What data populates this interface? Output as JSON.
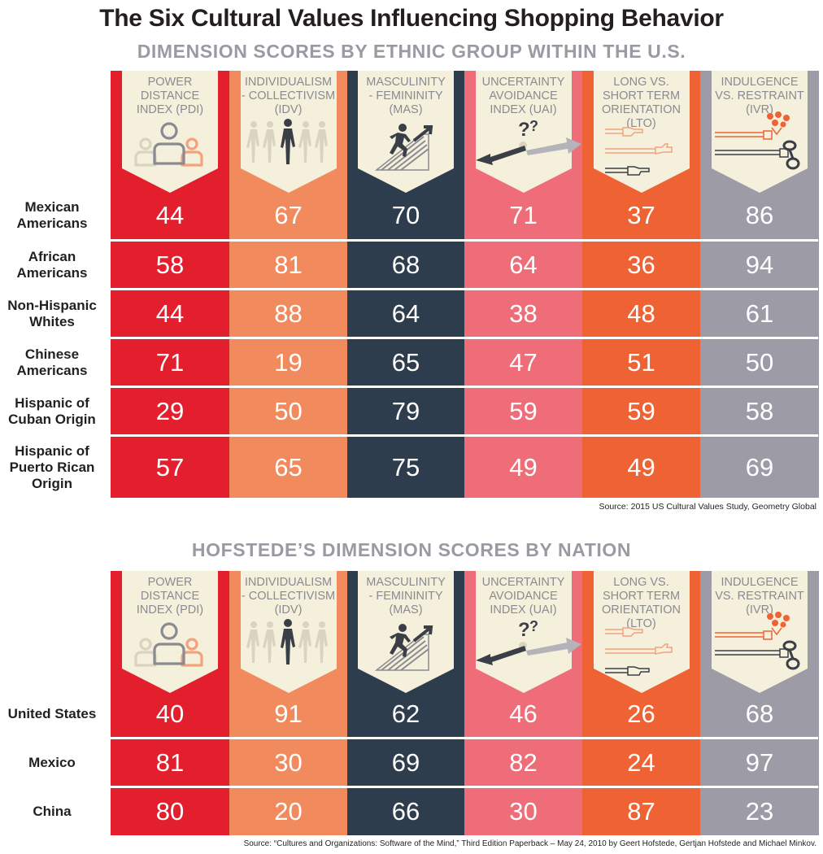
{
  "title": "The Six Cultural Values Influencing Shopping Behavior",
  "colors": {
    "pdi": "#e31e2d",
    "idv": "#f18b5e",
    "mas": "#2e3d4d",
    "uai": "#ef6d79",
    "lto": "#ef6233",
    "ivr": "#9d9ca6",
    "card": "#f5f0dc",
    "card_text": "#8a8a91"
  },
  "dimensions": [
    {
      "key": "pdi",
      "label": "POWER DISTANCE INDEX (PDI)",
      "lines": [
        "POWER",
        "DISTANCE",
        "INDEX (PDI)"
      ],
      "icon": "people-group-icon"
    },
    {
      "key": "idv",
      "label": "INDIVIDUALISM - COLLECTIVISM (IDV)",
      "lines": [
        "INDIVIDUALISM",
        "- COLLECTIVISM",
        "(IDV)"
      ],
      "icon": "walking-crowd-icon"
    },
    {
      "key": "mas",
      "label": "MASCULINITY - FEMININITY (MAS)",
      "lines": [
        "MASCULINITY",
        "- FEMININITY",
        "(MAS)"
      ],
      "icon": "runner-stairs-icon"
    },
    {
      "key": "uai",
      "label": "UNCERTAINTY AVOIDANCE INDEX (UAI)",
      "lines": [
        "UNCERTAINTY",
        "AVOIDANCE",
        "INDEX (UAI)"
      ],
      "icon": "question-arrows-icon"
    },
    {
      "key": "lto",
      "label": "LONG VS. SHORT TERM ORIENTATION (LTO)",
      "lines": [
        "LONG VS.",
        "SHORT TERM",
        "ORIENTATION",
        "(LTO)"
      ],
      "icon": "pointing-hands-icon"
    },
    {
      "key": "ivr",
      "label": "INDULGENCE VS. RESTRAINT (IVR)",
      "lines": [
        "INDULGENCE",
        "VS. RESTRAINT",
        "(IVR)"
      ],
      "icon": "flowers-handcuff-icon"
    }
  ],
  "chart_data": [
    {
      "type": "table",
      "title": "DIMENSION SCORES BY ETHNIC GROUP WITHIN THE U.S.",
      "columns": [
        "POWER DISTANCE INDEX (PDI)",
        "INDIVIDUALISM - COLLECTIVISM (IDV)",
        "MASCULINITY - FEMININITY (MAS)",
        "UNCERTAINTY AVOIDANCE INDEX (UAI)",
        "LONG VS. SHORT TERM ORIENTATION (LTO)",
        "INDULGENCE VS. RESTRAINT (IVR)"
      ],
      "rows": [
        {
          "label": "Mexican Americans",
          "lines": [
            "Mexican",
            "Americans"
          ],
          "values": [
            44,
            67,
            70,
            71,
            37,
            86
          ]
        },
        {
          "label": "African Americans",
          "lines": [
            "African",
            "Americans"
          ],
          "values": [
            58,
            81,
            68,
            64,
            36,
            94
          ]
        },
        {
          "label": "Non-Hispanic Whites",
          "lines": [
            "Non-Hispanic",
            "Whites"
          ],
          "values": [
            44,
            88,
            64,
            38,
            48,
            61
          ]
        },
        {
          "label": "Chinese Americans",
          "lines": [
            "Chinese",
            "Americans"
          ],
          "values": [
            71,
            19,
            65,
            47,
            51,
            50
          ]
        },
        {
          "label": "Hispanic of Cuban Origin",
          "lines": [
            "Hispanic of",
            "Cuban Origin"
          ],
          "values": [
            29,
            50,
            79,
            59,
            59,
            58
          ]
        },
        {
          "label": "Hispanic of Puerto Rican Origin",
          "lines": [
            "Hispanic of",
            "Puerto Rican",
            "Origin"
          ],
          "values": [
            57,
            65,
            75,
            49,
            49,
            69
          ]
        }
      ],
      "source": "Source: 2015 US Cultural Values Study, Geometry Global"
    },
    {
      "type": "table",
      "title": "HOFSTEDE’S DIMENSION SCORES BY NATION",
      "columns": [
        "POWER DISTANCE INDEX (PDI)",
        "INDIVIDUALISM - COLLECTIVISM (IDV)",
        "MASCULINITY - FEMININITY (MAS)",
        "UNCERTAINTY AVOIDANCE INDEX (UAI)",
        "LONG VS. SHORT TERM ORIENTATION (LTO)",
        "INDULGENCE VS. RESTRAINT (IVR)"
      ],
      "rows": [
        {
          "label": "United States",
          "lines": [
            "United States"
          ],
          "values": [
            40,
            91,
            62,
            46,
            26,
            68
          ]
        },
        {
          "label": "Mexico",
          "lines": [
            "Mexico"
          ],
          "values": [
            81,
            30,
            69,
            82,
            24,
            97
          ]
        },
        {
          "label": "China",
          "lines": [
            "China"
          ],
          "values": [
            80,
            20,
            66,
            30,
            87,
            23
          ]
        }
      ],
      "source": "Source: “Cultures and Organizations: Software of the Mind,” Third Edition Paperback – May 24, 2010 by Geert Hofstede, Gertjan Hofstede and Michael Minkov."
    }
  ]
}
